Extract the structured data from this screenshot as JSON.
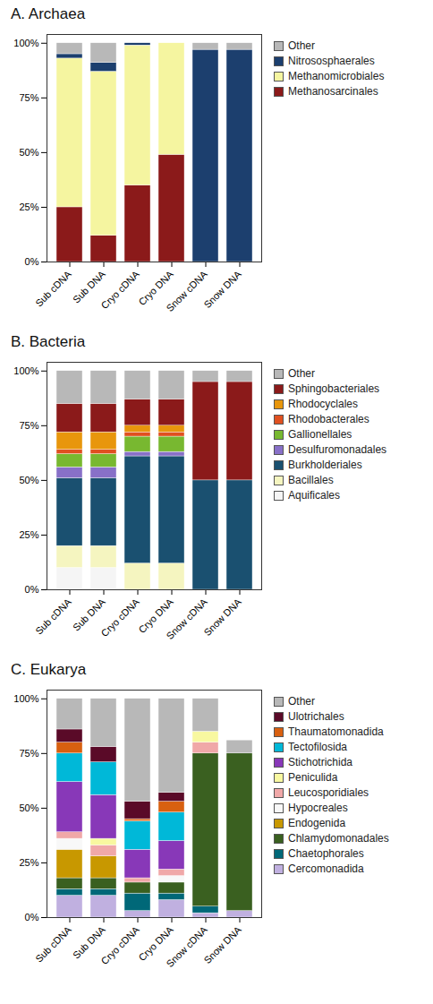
{
  "chart_data": [
    {
      "type": "bar",
      "title": "A. Archaea",
      "stacked": true,
      "grid": false,
      "legend": "right",
      "categories": [
        "Sub cDNA",
        "Sub DNA",
        "Cryo cDNA",
        "Cryo DNA",
        "Snow cDNA",
        "Snow DNA"
      ],
      "ylim": [
        0,
        104
      ],
      "yticks": [
        {
          "value": 0,
          "label": "0%"
        },
        {
          "value": 25,
          "label": "25%"
        },
        {
          "value": 50,
          "label": "50%"
        },
        {
          "value": 75,
          "label": "75%"
        },
        {
          "value": 100,
          "label": "100%"
        }
      ],
      "series": [
        {
          "name": "Methanosarcinales",
          "color": "#8b1a1a",
          "values": [
            25,
            12,
            35,
            49,
            0,
            0
          ]
        },
        {
          "name": "Methanomicrobiales",
          "color": "#f5f5a0",
          "values": [
            68,
            75,
            64,
            51,
            0,
            0
          ]
        },
        {
          "name": "Nitrososphaerales",
          "color": "#1c3f6e",
          "values": [
            2,
            4,
            1,
            0,
            97,
            97
          ]
        },
        {
          "name": "Other",
          "color": "#b8b8b8",
          "values": [
            5,
            9,
            0,
            0,
            3,
            3
          ]
        }
      ]
    },
    {
      "type": "bar",
      "title": "B. Bacteria",
      "stacked": true,
      "grid": false,
      "legend": "right",
      "categories": [
        "Sub cDNA",
        "Sub DNA",
        "Cryo cDNA",
        "Cryo DNA",
        "Snow cDNA",
        "Snow DNA"
      ],
      "ylim": [
        0,
        104
      ],
      "yticks": [
        {
          "value": 0,
          "label": "0%"
        },
        {
          "value": 25,
          "label": "25%"
        },
        {
          "value": 50,
          "label": "50%"
        },
        {
          "value": 75,
          "label": "75%"
        },
        {
          "value": 100,
          "label": "100%"
        }
      ],
      "series": [
        {
          "name": "Aquificales",
          "color": "#f5f5f5",
          "values": [
            10,
            10,
            0,
            0,
            0,
            0
          ]
        },
        {
          "name": "Bacillales",
          "color": "#f5f5c0",
          "values": [
            10,
            10,
            12,
            12,
            0,
            0
          ]
        },
        {
          "name": "Burkholderiales",
          "color": "#1a5070",
          "values": [
            31,
            31,
            49,
            49,
            50,
            50
          ]
        },
        {
          "name": "Desulfuromonadales",
          "color": "#8870c8",
          "values": [
            5,
            5,
            2,
            2,
            0,
            0
          ]
        },
        {
          "name": "Gallionellales",
          "color": "#78b830",
          "values": [
            6,
            6,
            7,
            7,
            0,
            0
          ]
        },
        {
          "name": "Rhodobacterales",
          "color": "#e05020",
          "values": [
            2,
            2,
            2,
            2,
            0,
            0
          ]
        },
        {
          "name": "Rhodocyclales",
          "color": "#e8960c",
          "values": [
            8,
            8,
            3,
            3,
            0,
            0
          ]
        },
        {
          "name": "Sphingobacteriales",
          "color": "#8b1a1a",
          "values": [
            13,
            13,
            12,
            12,
            45,
            45
          ]
        },
        {
          "name": "Other",
          "color": "#b8b8b8",
          "values": [
            15,
            15,
            13,
            13,
            5,
            5
          ]
        }
      ]
    },
    {
      "type": "bar",
      "title": "C. Eukarya",
      "stacked": true,
      "grid": false,
      "legend": "right",
      "categories": [
        "Sub cDNA",
        "Sub DNA",
        "Cryo cDNA",
        "Cryo DNA",
        "Snow cDNA",
        "Snow DNA"
      ],
      "ylim": [
        0,
        104
      ],
      "yticks": [
        {
          "value": 0,
          "label": "0%"
        },
        {
          "value": 25,
          "label": "25%"
        },
        {
          "value": 50,
          "label": "50%"
        },
        {
          "value": 75,
          "label": "75%"
        },
        {
          "value": 100,
          "label": "100%"
        }
      ],
      "series": [
        {
          "name": "Cercomonadida",
          "color": "#c0b0e0",
          "values": [
            10,
            10,
            3,
            8,
            2,
            3
          ]
        },
        {
          "name": "Chaetophorales",
          "color": "#006878",
          "values": [
            3,
            3,
            8,
            3,
            3,
            0
          ]
        },
        {
          "name": "Chlamydomonadales",
          "color": "#3a6020",
          "values": [
            5,
            5,
            5,
            5,
            70,
            72
          ]
        },
        {
          "name": "Endogenida",
          "color": "#c89800",
          "values": [
            13,
            10,
            0,
            0,
            0,
            0
          ]
        },
        {
          "name": "Hypocreales",
          "color": "#f8f8f8",
          "values": [
            5,
            0,
            0,
            3,
            0,
            0
          ]
        },
        {
          "name": "Leucosporidiales",
          "color": "#f0a8a8",
          "values": [
            3,
            5,
            2,
            3,
            5,
            0
          ]
        },
        {
          "name": "Peniculida",
          "color": "#f8f8a0",
          "values": [
            0,
            3,
            0,
            0,
            5,
            0
          ]
        },
        {
          "name": "Stichotrichida",
          "color": "#8838b8",
          "values": [
            23,
            20,
            13,
            13,
            0,
            0
          ]
        },
        {
          "name": "Tectofilosida",
          "color": "#00b8d8",
          "values": [
            13,
            15,
            13,
            13,
            0,
            0
          ]
        },
        {
          "name": "Thaumatomonadida",
          "color": "#d86010",
          "values": [
            5,
            0,
            1,
            5,
            0,
            0
          ]
        },
        {
          "name": "Ulotrichales",
          "color": "#5a0a28",
          "values": [
            6,
            7,
            8,
            4,
            0,
            0
          ]
        },
        {
          "name": "Other",
          "color": "#b8b8b8",
          "values": [
            14,
            22,
            47,
            43,
            15,
            6
          ]
        }
      ]
    }
  ]
}
